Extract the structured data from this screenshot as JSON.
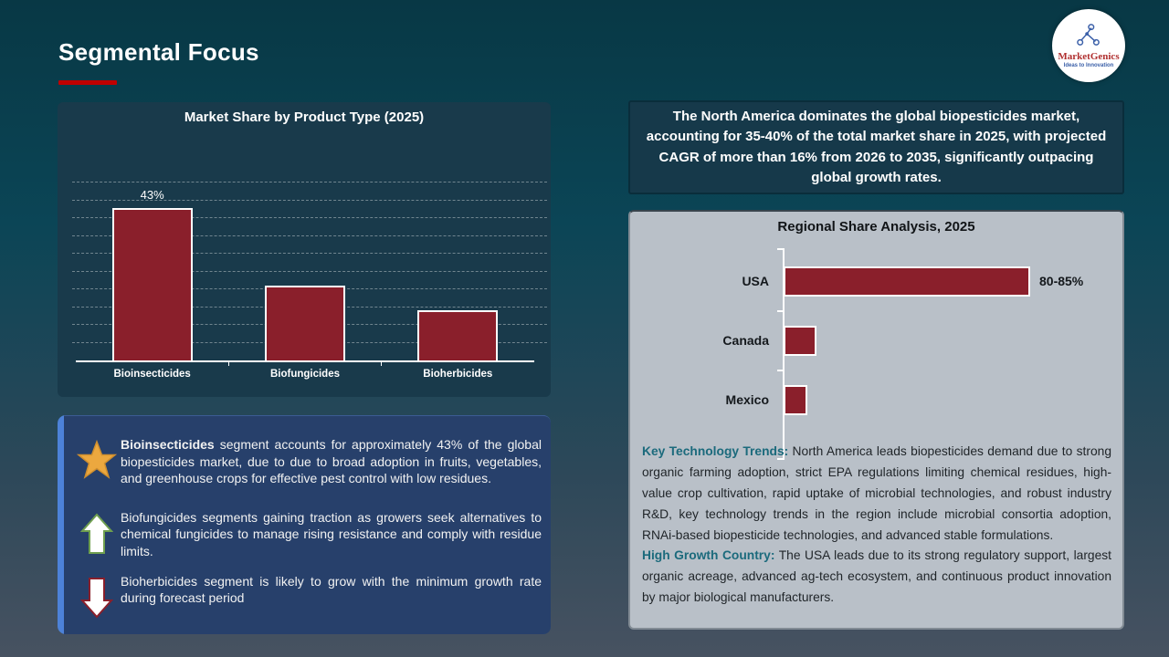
{
  "slide": {
    "title": "Segmental Focus"
  },
  "logo": {
    "name": "MarketGenics",
    "tagline": "Ideas to Innovation"
  },
  "highlight_box": {
    "text": "The North America dominates the global biopesticides market, accounting for 35-40% of the total market share in 2025, with projected CAGR of more than 16% from 2026 to 2035, significantly outpacing global growth rates."
  },
  "segment_notes": [
    {
      "icon": "star-icon",
      "lead": "Bioinsecticides",
      "text": " segment accounts for approximately 43% of the global biopesticides market, due to due to broad adoption in fruits, vegetables, and greenhouse crops for effective pest control with low residues."
    },
    {
      "icon": "arrow-up-icon",
      "lead": "",
      "text": "Biofungicides segments gaining traction as growers seek alternatives to chemical fungicides to manage rising resistance and comply with residue limits."
    },
    {
      "icon": "arrow-down-icon",
      "lead": "",
      "text": "Bioherbicides segment is likely to grow with the minimum growth rate during forecast period"
    }
  ],
  "regional_notes": [
    {
      "lead": "Key Technology Trends:",
      "text": " North America leads biopesticides demand due to strong organic farming adoption, strict EPA regulations limiting chemical residues, high-value crop cultivation, rapid uptake of microbial technologies, and robust industry R&D, key technology trends in the region include microbial consortia adoption, RNAi-based biopesticide technologies, and advanced stable formulations."
    },
    {
      "lead": "High Growth Country:",
      "text": " The USA leads due to its strong regulatory support, largest organic acreage, advanced ag-tech ecosystem, and continuous product innovation by major biological manufacturers."
    }
  ],
  "chart_data": [
    {
      "type": "bar",
      "orientation": "vertical",
      "title": "Market Share by Product Type (2025)",
      "categories": [
        "Bioinsecticides",
        "Biofungicides",
        "Bioherbicides"
      ],
      "values": [
        43,
        21,
        14
      ],
      "value_labels": [
        "43%",
        "",
        ""
      ],
      "xlabel": "",
      "ylabel": "",
      "ylim": [
        0,
        66
      ],
      "grid_step": 5,
      "grid_max": 50,
      "grid_style": "dashed-horizontal",
      "legend": "none",
      "bar_color": "#8a1f2b",
      "bar_border_color": "#ffffff"
    },
    {
      "type": "bar",
      "orientation": "horizontal",
      "title": "Regional Share Analysis, 2025",
      "categories": [
        "USA",
        "Canada",
        "Mexico"
      ],
      "values": [
        82.5,
        11,
        8
      ],
      "value_labels": [
        "80-85%",
        "",
        ""
      ],
      "xlim": [
        0,
        100
      ],
      "grid": "off",
      "legend": "none",
      "bar_color": "#8a1f2b",
      "bar_border_color": "#ffffff"
    }
  ],
  "colors": {
    "accent_red": "#c00000",
    "bar_maroon": "#8a1f2b",
    "lead_teal": "#1b6a7c",
    "info_box_blue": "#27406b",
    "info_box_stripe": "#4d82d8",
    "panel_teal": "#16394a",
    "regional_bg": "#b9c0c8",
    "star_gold": "#eca83f"
  }
}
